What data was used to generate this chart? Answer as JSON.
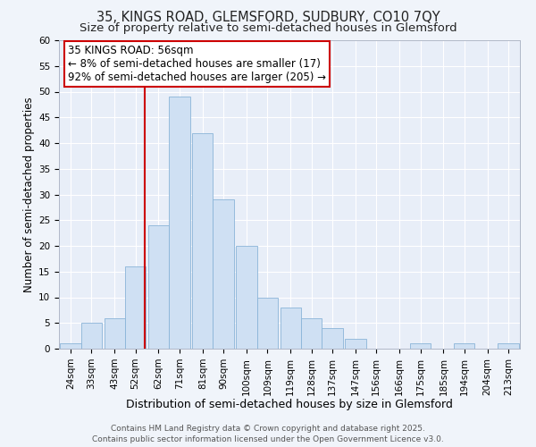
{
  "title1": "35, KINGS ROAD, GLEMSFORD, SUDBURY, CO10 7QY",
  "title2": "Size of property relative to semi-detached houses in Glemsford",
  "xlabel": "Distribution of semi-detached houses by size in Glemsford",
  "ylabel": "Number of semi-detached properties",
  "bin_labels": [
    "24sqm",
    "33sqm",
    "43sqm",
    "52sqm",
    "62sqm",
    "71sqm",
    "81sqm",
    "90sqm",
    "100sqm",
    "109sqm",
    "119sqm",
    "128sqm",
    "137sqm",
    "147sqm",
    "156sqm",
    "166sqm",
    "175sqm",
    "185sqm",
    "194sqm",
    "204sqm",
    "213sqm"
  ],
  "bin_centers": [
    24,
    33,
    43,
    52,
    62,
    71,
    81,
    90,
    100,
    109,
    119,
    128,
    137,
    147,
    156,
    166,
    175,
    185,
    194,
    204,
    213
  ],
  "bin_width": 9,
  "values": [
    1,
    5,
    6,
    16,
    24,
    49,
    42,
    29,
    20,
    10,
    8,
    6,
    4,
    2,
    0,
    0,
    1,
    0,
    1,
    0,
    1
  ],
  "bar_color": "#cfe0f3",
  "bar_edge_color": "#8ab4d8",
  "red_line_x": 56,
  "annotation_title": "35 KINGS ROAD: 56sqm",
  "annotation_line1": "← 8% of semi-detached houses are smaller (17)",
  "annotation_line2": "92% of semi-detached houses are larger (205) →",
  "annotation_box_facecolor": "#ffffff",
  "annotation_box_edgecolor": "#cc0000",
  "red_line_color": "#cc0000",
  "ylim": [
    0,
    60
  ],
  "yticks": [
    0,
    5,
    10,
    15,
    20,
    25,
    30,
    35,
    40,
    45,
    50,
    55,
    60
  ],
  "plot_bg_color": "#e8eef8",
  "fig_bg_color": "#f0f4fa",
  "grid_color": "#ffffff",
  "footer_line1": "Contains HM Land Registry data © Crown copyright and database right 2025.",
  "footer_line2": "Contains public sector information licensed under the Open Government Licence v3.0.",
  "title1_fontsize": 10.5,
  "title2_fontsize": 9.5,
  "xlabel_fontsize": 9,
  "ylabel_fontsize": 8.5,
  "tick_fontsize": 7.5,
  "footer_fontsize": 6.5,
  "annotation_fontsize": 8.5
}
